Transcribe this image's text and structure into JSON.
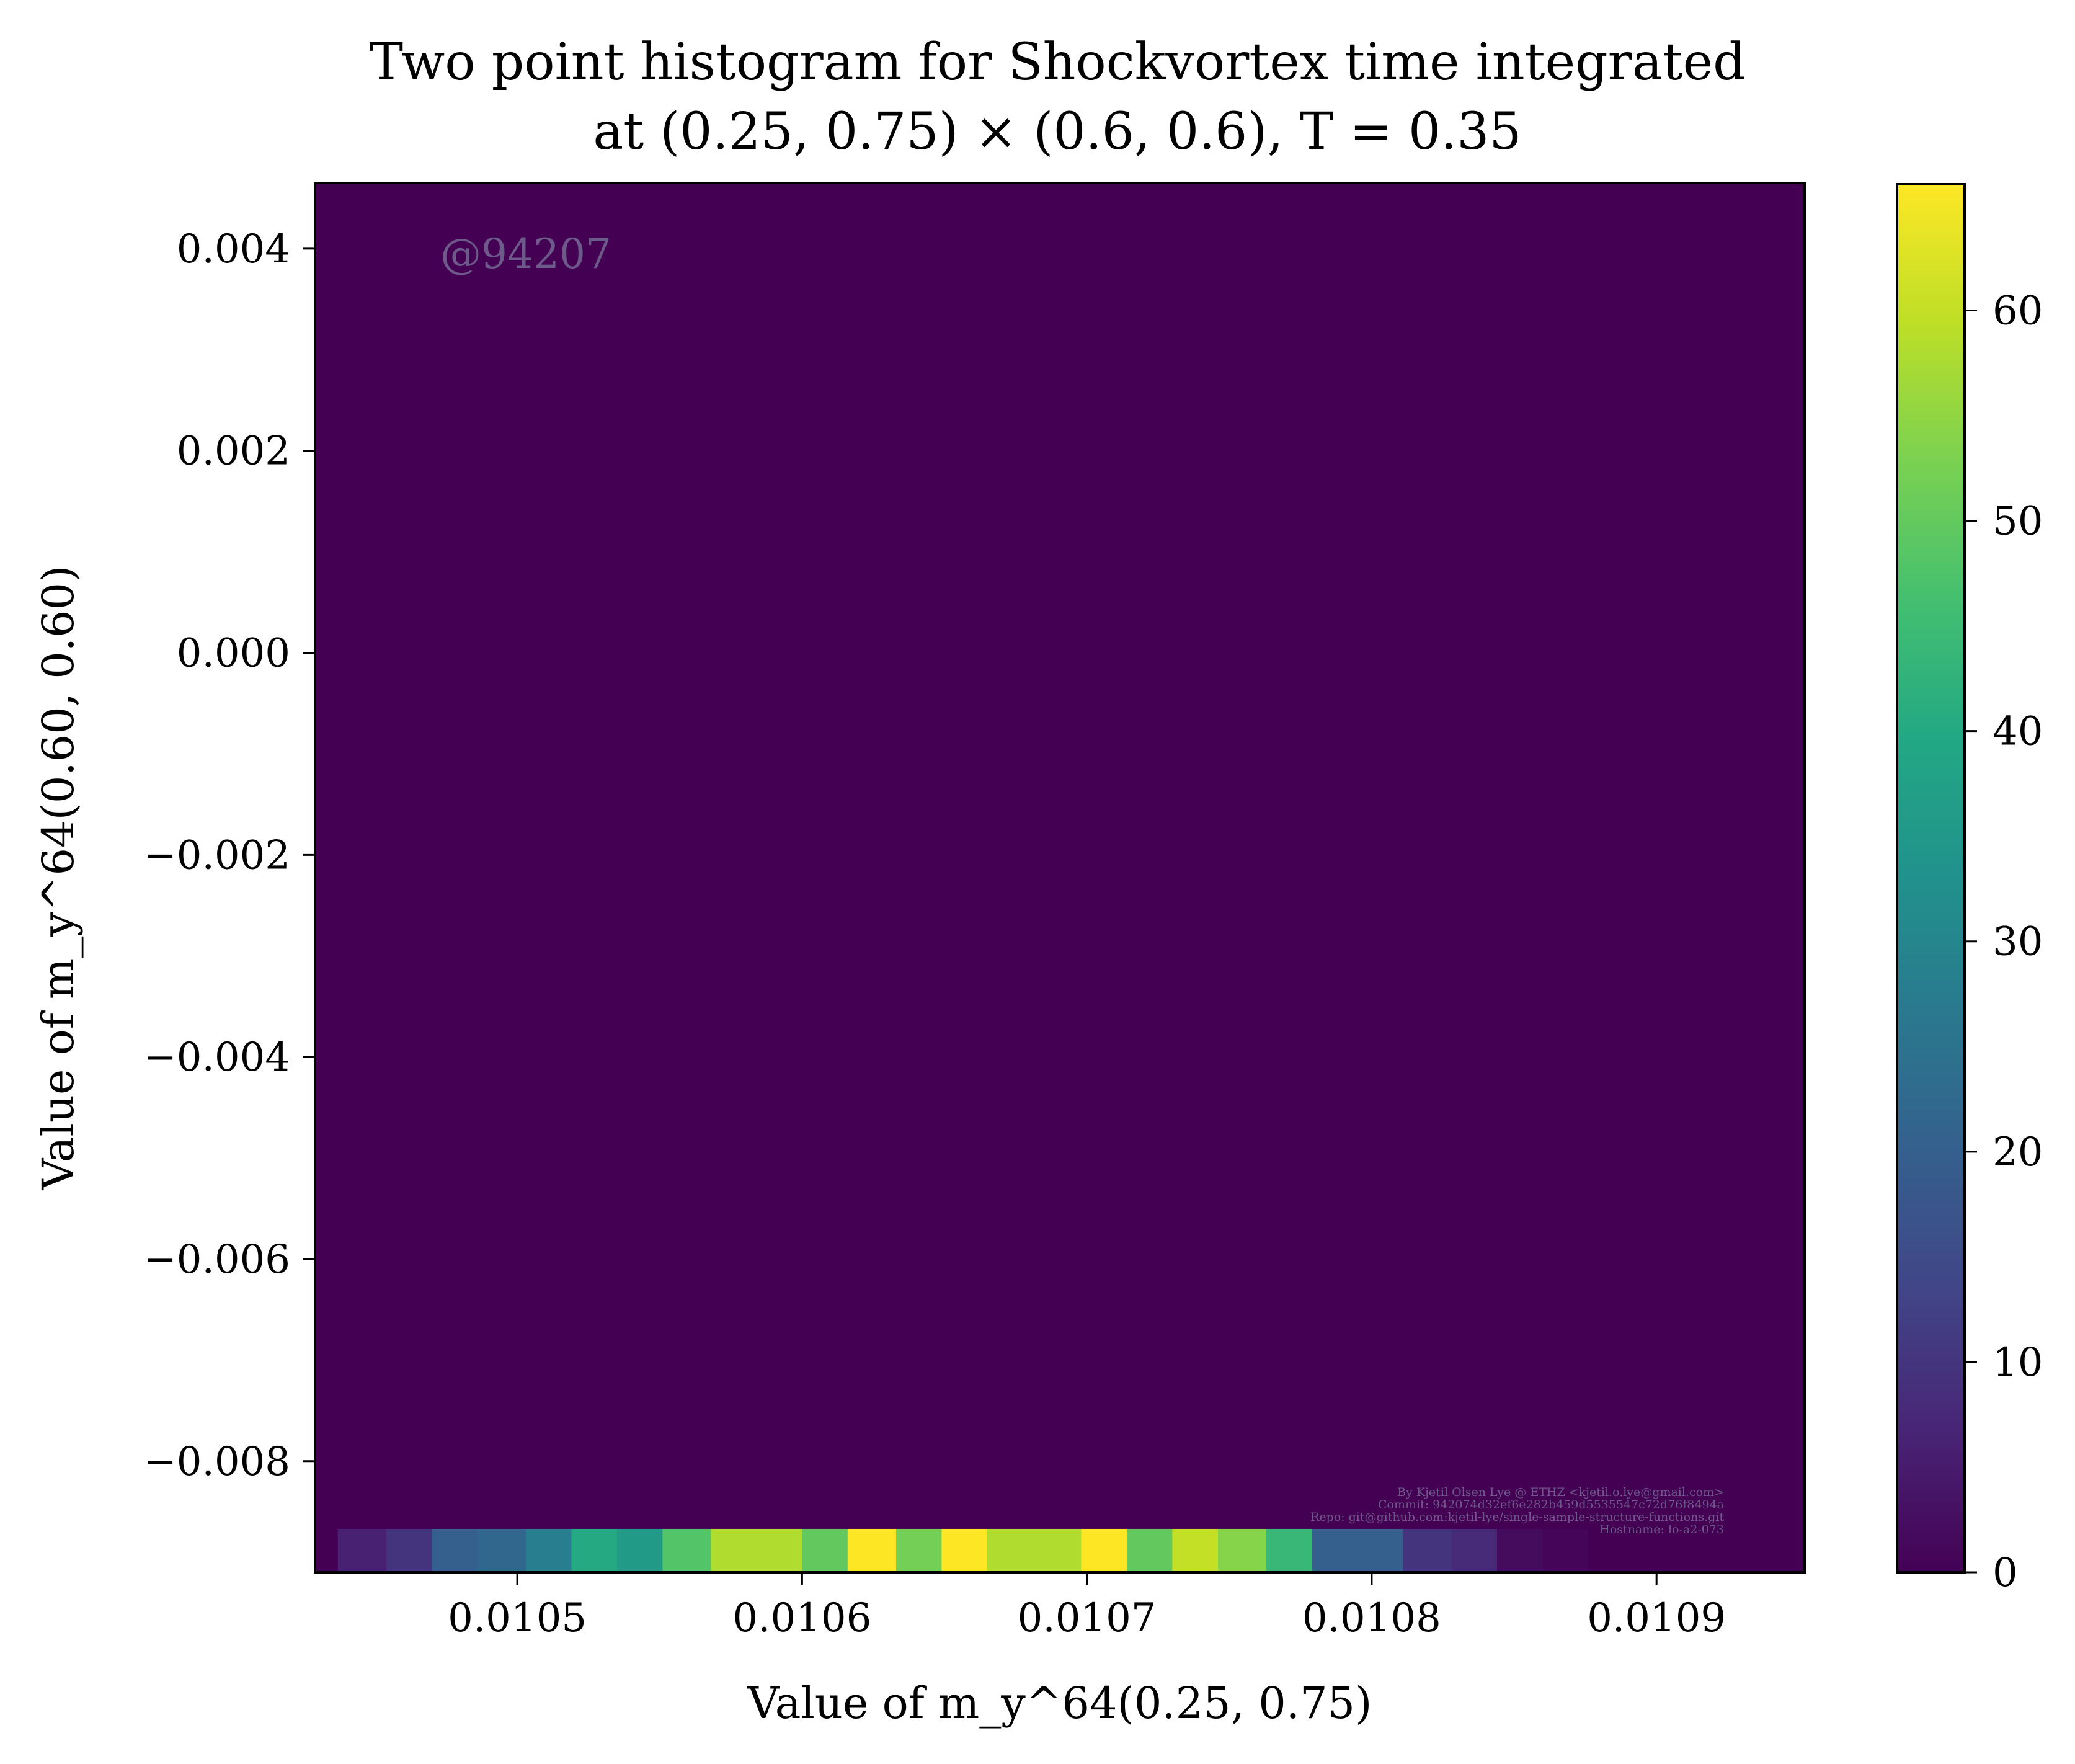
{
  "chart_data": {
    "type": "heatmap",
    "title": "Two point histogram for Shockvortex time integrated",
    "subtitle": "at (0.25, 0.75) × (0.6, 0.6), T = 0.35",
    "xlabel": "Value of m_y^64(0.25, 0.75)",
    "ylabel": "Value of m_y^64(0.60, 0.60)",
    "xlim": [
      0.010429,
      0.010952
    ],
    "ylim": [
      -0.0091,
      0.00465
    ],
    "x_ticks": [
      0.0105,
      0.0106,
      0.0107,
      0.0108,
      0.0109
    ],
    "x_tick_labels": [
      "0.0105",
      "0.0106",
      "0.0107",
      "0.0108",
      "0.0109"
    ],
    "y_ticks": [
      0.004,
      0.002,
      0.0,
      -0.002,
      -0.004,
      -0.006,
      -0.008
    ],
    "y_tick_labels": [
      "0.004",
      "0.002",
      "0.000",
      "−0.002",
      "−0.004",
      "−0.006",
      "−0.008"
    ],
    "background_count": 0,
    "row_y_range": [
      -0.0091,
      -0.00867
    ],
    "bin_x_edges": [
      0.010437,
      0.010454,
      0.01047,
      0.010486,
      0.010503,
      0.010519,
      0.010535,
      0.010551,
      0.010568,
      0.010584,
      0.0106,
      0.010616,
      0.010633,
      0.010649,
      0.010665,
      0.010681,
      0.010698,
      0.010714,
      0.01073,
      0.010746,
      0.010763,
      0.010779,
      0.010795,
      0.010811,
      0.010828,
      0.010844,
      0.01086,
      0.010876,
      0.010893,
      0.010909,
      0.010925
    ],
    "bin_counts": [
      6,
      10,
      20,
      22,
      28,
      40,
      36,
      48,
      58,
      58,
      50,
      66,
      52,
      66,
      58,
      58,
      66,
      50,
      60,
      54,
      44,
      20,
      20,
      10,
      8,
      2,
      1,
      0,
      0,
      0
    ],
    "colorbar": {
      "colormap": "viridis",
      "range": [
        0,
        66
      ],
      "ticks": [
        0,
        10,
        20,
        30,
        40,
        50,
        60
      ],
      "tick_labels": [
        "0",
        "10",
        "20",
        "30",
        "40",
        "50",
        "60"
      ]
    },
    "grid": false,
    "watermark": "@94207",
    "credits": [
      "By Kjetil Olsen Lye @ ETHZ <kjetil.o.lye@gmail.com>",
      "Commit: 942074d32ef6e282b459d5535547c72d76f8494a",
      "Repo: git@github.com:kjetil-lye/single-sample-structure-functions.git",
      "Hostname: lo-a2-073"
    ]
  }
}
